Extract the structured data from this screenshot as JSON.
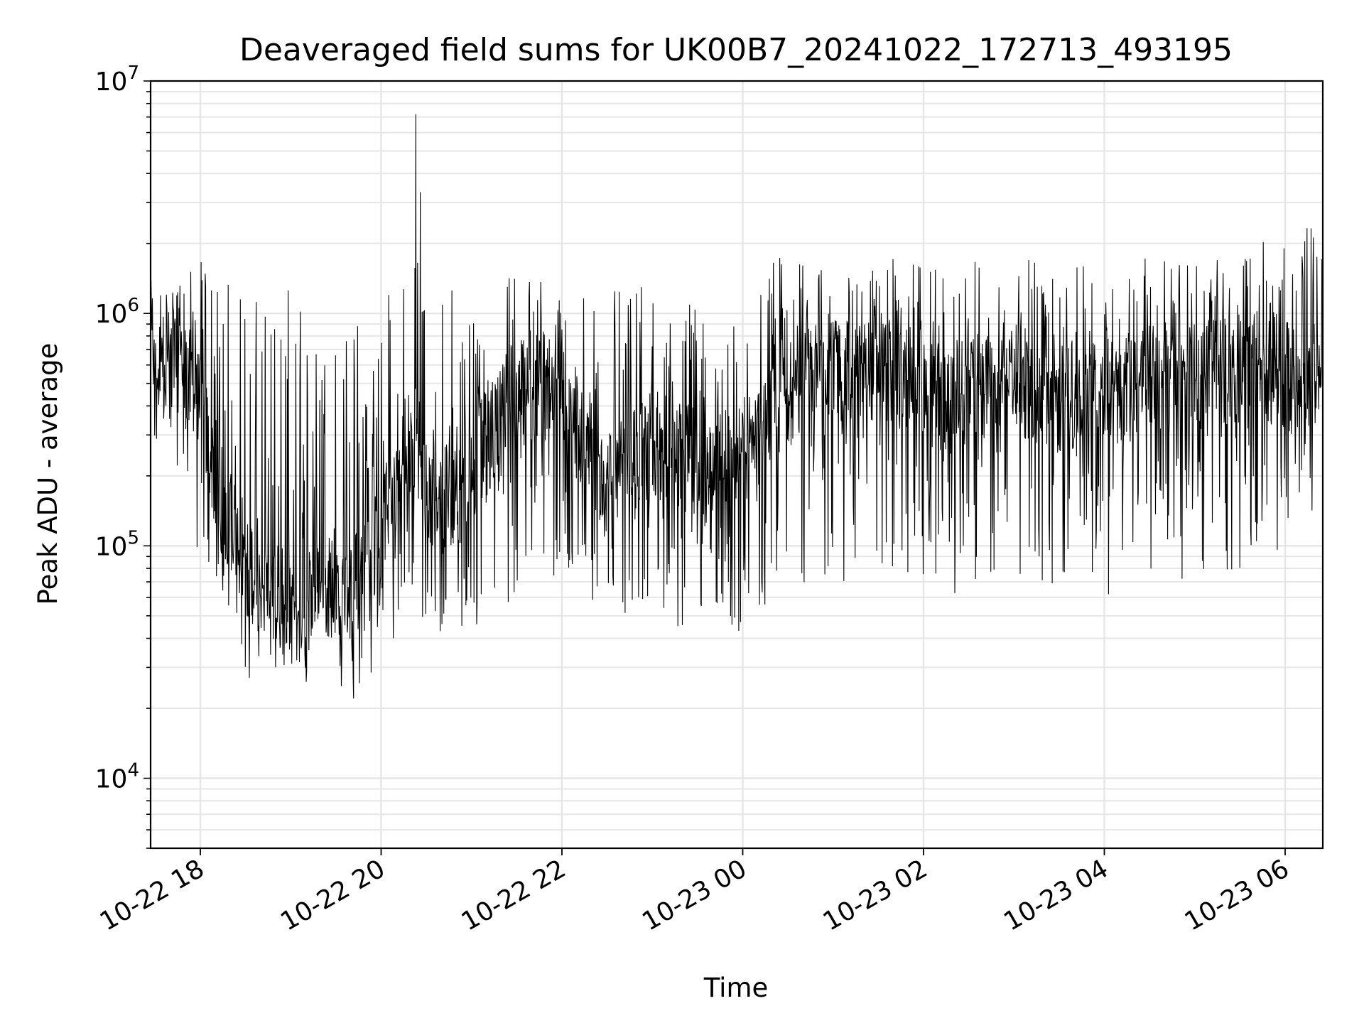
{
  "chart_data": {
    "type": "line",
    "title": "Deaveraged field sums for UK00B7_20241022_172713_493195",
    "xlabel": "Time",
    "ylabel": "Peak ADU - average",
    "yscale": "log",
    "ylim": [
      5000,
      10000000
    ],
    "xlim": [
      "2024-10-22 17:27",
      "2024-10-23 06:25"
    ],
    "grid": true,
    "line_color": "#000000",
    "grid_color": "#e6e6e6",
    "x_ticks": [
      {
        "value": "2024-10-22 18:00",
        "label": "10-22 18"
      },
      {
        "value": "2024-10-22 20:00",
        "label": "10-22 20"
      },
      {
        "value": "2024-10-22 22:00",
        "label": "10-22 22"
      },
      {
        "value": "2024-10-23 00:00",
        "label": "10-23 00"
      },
      {
        "value": "2024-10-23 02:00",
        "label": "10-23 02"
      },
      {
        "value": "2024-10-23 04:00",
        "label": "10-23 04"
      },
      {
        "value": "2024-10-23 06:00",
        "label": "10-23 06"
      }
    ],
    "y_ticks": [
      {
        "value": 10000,
        "base": "10",
        "exp": "4"
      },
      {
        "value": 100000,
        "base": "10",
        "exp": "5"
      },
      {
        "value": 1000000,
        "base": "10",
        "exp": "6"
      },
      {
        "value": 10000000,
        "base": "10",
        "exp": "7"
      }
    ],
    "series": [
      {
        "x": [
          "2024-10-22 17:27",
          "2024-10-22 17:45",
          "2024-10-22 18:00",
          "2024-10-22 18:15",
          "2024-10-22 18:30",
          "2024-10-22 18:45",
          "2024-10-22 19:00",
          "2024-10-22 19:15",
          "2024-10-22 19:30",
          "2024-10-22 19:45",
          "2024-10-22 20:00",
          "2024-10-22 20:15",
          "2024-10-22 20:23",
          "2024-10-22 20:30",
          "2024-10-22 20:45",
          "2024-10-22 21:00",
          "2024-10-22 21:15",
          "2024-10-22 21:30",
          "2024-10-22 21:45",
          "2024-10-22 22:00",
          "2024-10-22 22:15",
          "2024-10-22 22:30",
          "2024-10-22 22:45",
          "2024-10-22 23:00",
          "2024-10-22 23:15",
          "2024-10-22 23:30",
          "2024-10-22 23:45",
          "2024-10-23 00:00",
          "2024-10-23 00:15",
          "2024-10-23 00:30",
          "2024-10-23 00:45",
          "2024-10-23 01:00",
          "2024-10-23 01:15",
          "2024-10-23 01:30",
          "2024-10-23 01:45",
          "2024-10-23 02:00",
          "2024-10-23 02:15",
          "2024-10-23 02:30",
          "2024-10-23 02:45",
          "2024-10-23 03:00",
          "2024-10-23 03:15",
          "2024-10-23 03:30",
          "2024-10-23 03:45",
          "2024-10-23 04:00",
          "2024-10-23 04:15",
          "2024-10-23 04:30",
          "2024-10-23 04:45",
          "2024-10-23 05:00",
          "2024-10-23 05:15",
          "2024-10-23 05:30",
          "2024-10-23 05:45",
          "2024-10-23 06:00",
          "2024-10-23 06:15",
          "2024-10-23 06:25"
        ],
        "y_typical": [
          550000,
          650000,
          400000,
          150000,
          90000,
          60000,
          55000,
          60000,
          70000,
          60000,
          120000,
          250000,
          300000,
          180000,
          150000,
          220000,
          350000,
          450000,
          500000,
          400000,
          250000,
          200000,
          220000,
          280000,
          250000,
          230000,
          220000,
          250000,
          300000,
          450000,
          550000,
          580000,
          520000,
          600000,
          550000,
          500000,
          400000,
          450000,
          480000,
          520000,
          480000,
          430000,
          450000,
          500000,
          480000,
          520000,
          550000,
          600000,
          580000,
          560000,
          580000,
          540000,
          520000,
          500000
        ],
        "y_max": [
          1400000,
          1400000,
          1700000,
          1400000,
          1400000,
          1500000,
          1500000,
          800000,
          900000,
          1100000,
          1200000,
          1600000,
          7200000,
          1500000,
          1400000,
          1300000,
          1600000,
          1500000,
          1500000,
          1200000,
          1300000,
          1300000,
          1200000,
          1400000,
          1100000,
          1100000,
          1200000,
          1000000,
          1700000,
          1900000,
          1500000,
          1700000,
          1600000,
          1600000,
          1800000,
          1600000,
          1500000,
          1800000,
          1600000,
          1600000,
          1800000,
          1500000,
          1600000,
          1600000,
          1700000,
          2000000,
          1700000,
          1800000,
          1700000,
          1700000,
          2200000,
          1900000,
          2500000,
          1900000
        ],
        "y_min": [
          270000,
          220000,
          75000,
          50000,
          25000,
          30000,
          30000,
          19000,
          25000,
          20000,
          25000,
          50000,
          45000,
          45000,
          40000,
          35000,
          50000,
          60000,
          70000,
          65000,
          55000,
          55000,
          50000,
          55000,
          45000,
          40000,
          50000,
          38000,
          50000,
          60000,
          55000,
          70000,
          70000,
          65000,
          70000,
          75000,
          60000,
          65000,
          70000,
          60000,
          65000,
          60000,
          75000,
          60000,
          60000,
          70000,
          75000,
          65000,
          75000,
          70000,
          70000,
          65000,
          110000,
          150000
        ]
      }
    ]
  }
}
